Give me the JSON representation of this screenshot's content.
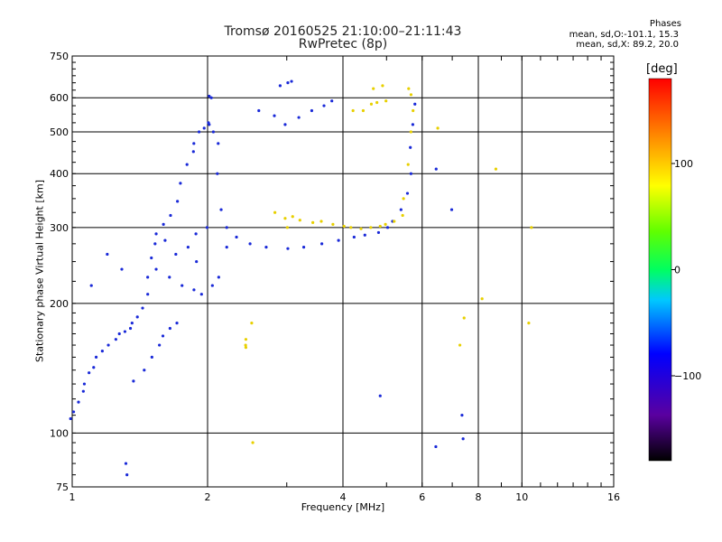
{
  "chart_data": {
    "type": "scatter",
    "title": "Tromsø 20160525 21:10:00–21:11:43",
    "subtitle": "RwPretec (8p)",
    "xlabel": "Frequency [MHz]",
    "ylabel": "Stationary phase Virtual Height [km]",
    "x_scale": "log",
    "y_scale": "log",
    "xlim": [
      1,
      16
    ],
    "ylim": [
      75,
      750
    ],
    "x_ticks": [
      1,
      2,
      4,
      6,
      8,
      10,
      16
    ],
    "x_tick_labels": [
      "1",
      "2",
      "4",
      "6",
      "8",
      "10",
      "16"
    ],
    "y_ticks": [
      75,
      100,
      200,
      300,
      400,
      500,
      600,
      750
    ],
    "y_tick_labels": [
      "75",
      "100",
      "200",
      "300",
      "400",
      "500",
      "600",
      "750"
    ],
    "grid": true,
    "phases": {
      "title": "Phases",
      "o_line": "mean, sd,O:-101.1, 15.3",
      "x_line": "mean, sd,X: 89.2, 20.0"
    },
    "colorbar": {
      "title": "[deg]",
      "range": [
        -180,
        180
      ],
      "ticks": [
        100,
        0,
        -100
      ],
      "tick_labels": [
        "100",
        "0",
        "−100"
      ]
    },
    "series": [
      {
        "points": [
          [
            1.0,
            108
          ],
          [
            1.01,
            112
          ],
          [
            1.03,
            118
          ],
          [
            1.05,
            125
          ],
          [
            1.07,
            130
          ],
          [
            1.09,
            138
          ],
          [
            1.11,
            142
          ],
          [
            1.14,
            150
          ],
          [
            1.17,
            155
          ],
          [
            1.2,
            160
          ],
          [
            1.24,
            165
          ],
          [
            1.28,
            170
          ],
          [
            1.31,
            172
          ],
          [
            1.34,
            175
          ],
          [
            1.37,
            180
          ],
          [
            1.4,
            186
          ],
          [
            1.43,
            195
          ],
          [
            1.46,
            210
          ],
          [
            1.48,
            230
          ],
          [
            1.5,
            255
          ],
          [
            1.52,
            275
          ],
          [
            1.55,
            290
          ],
          [
            1.6,
            305
          ],
          [
            1.65,
            320
          ],
          [
            1.7,
            345
          ],
          [
            1.75,
            380
          ],
          [
            1.8,
            420
          ],
          [
            1.85,
            450
          ],
          [
            1.88,
            470
          ],
          [
            1.92,
            500
          ],
          [
            1.96,
            510
          ],
          [
            2.0,
            520
          ],
          [
            2.02,
            525
          ],
          [
            2.06,
            500
          ],
          [
            2.1,
            470
          ],
          [
            2.12,
            400
          ],
          [
            2.15,
            330
          ],
          [
            2.2,
            300
          ],
          [
            2.3,
            285
          ],
          [
            2.5,
            275
          ],
          [
            2.7,
            270
          ],
          [
            3.0,
            268
          ],
          [
            3.3,
            270
          ],
          [
            3.6,
            275
          ],
          [
            3.9,
            280
          ],
          [
            4.2,
            285
          ],
          [
            4.5,
            288
          ],
          [
            4.8,
            292
          ],
          [
            5.0,
            300
          ],
          [
            5.2,
            310
          ],
          [
            5.4,
            330
          ],
          [
            5.55,
            360
          ],
          [
            5.62,
            400
          ],
          [
            5.68,
            460
          ],
          [
            5.72,
            520
          ],
          [
            5.75,
            580
          ],
          [
            1.38,
            132
          ],
          [
            1.45,
            140
          ],
          [
            1.5,
            150
          ],
          [
            1.55,
            160
          ],
          [
            1.6,
            168
          ],
          [
            1.65,
            175
          ],
          [
            1.7,
            180
          ],
          [
            1.55,
            240
          ],
          [
            1.65,
            230
          ],
          [
            1.75,
            220
          ],
          [
            1.85,
            215
          ],
          [
            1.95,
            210
          ],
          [
            2.05,
            220
          ],
          [
            1.8,
            270
          ],
          [
            1.9,
            290
          ],
          [
            2.0,
            300
          ],
          [
            2.2,
            270
          ],
          [
            2.1,
            230
          ],
          [
            1.9,
            250
          ],
          [
            1.7,
            260
          ],
          [
            1.6,
            280
          ],
          [
            1.3,
            240
          ],
          [
            1.2,
            260
          ],
          [
            1.1,
            220
          ],
          [
            2.0,
            605
          ],
          [
            2.05,
            600
          ],
          [
            2.6,
            560
          ],
          [
            2.8,
            545
          ],
          [
            3.0,
            520
          ],
          [
            3.2,
            540
          ],
          [
            3.4,
            560
          ],
          [
            3.6,
            575
          ],
          [
            3.8,
            590
          ],
          [
            2.9,
            640
          ],
          [
            3.0,
            650
          ],
          [
            3.1,
            655
          ],
          [
            1.32,
            85
          ],
          [
            1.32,
            80
          ],
          [
            4.8,
            122
          ],
          [
            7.4,
            110
          ],
          [
            7.4,
            97
          ],
          [
            6.4,
            93
          ],
          [
            6.5,
            410
          ],
          [
            7.0,
            330
          ]
        ]
      },
      {
        "points": [
          [
            3.0,
            315
          ],
          [
            3.1,
            318
          ],
          [
            3.2,
            312
          ],
          [
            3.4,
            308
          ],
          [
            3.6,
            310
          ],
          [
            3.8,
            305
          ],
          [
            4.0,
            302
          ],
          [
            4.2,
            300
          ],
          [
            4.4,
            298
          ],
          [
            4.6,
            300
          ],
          [
            4.8,
            302
          ],
          [
            5.0,
            305
          ],
          [
            5.2,
            310
          ],
          [
            5.4,
            320
          ],
          [
            5.5,
            350
          ],
          [
            5.6,
            420
          ],
          [
            5.65,
            500
          ],
          [
            5.68,
            560
          ],
          [
            5.7,
            610
          ],
          [
            5.6,
            630
          ],
          [
            4.6,
            580
          ],
          [
            4.8,
            585
          ],
          [
            5.0,
            590
          ],
          [
            4.2,
            560
          ],
          [
            4.4,
            560
          ],
          [
            4.7,
            630
          ],
          [
            4.9,
            640
          ],
          [
            2.42,
            165
          ],
          [
            2.45,
            160
          ],
          [
            2.44,
            158
          ],
          [
            3.0,
            300
          ],
          [
            2.8,
            325
          ],
          [
            8.8,
            410
          ],
          [
            10.5,
            300
          ],
          [
            10.3,
            180
          ],
          [
            7.5,
            185
          ],
          [
            7.3,
            160
          ],
          [
            2.5,
            180
          ],
          [
            2.5,
            95
          ],
          [
            8.2,
            205
          ],
          [
            6.5,
            510
          ]
        ]
      }
    ]
  }
}
